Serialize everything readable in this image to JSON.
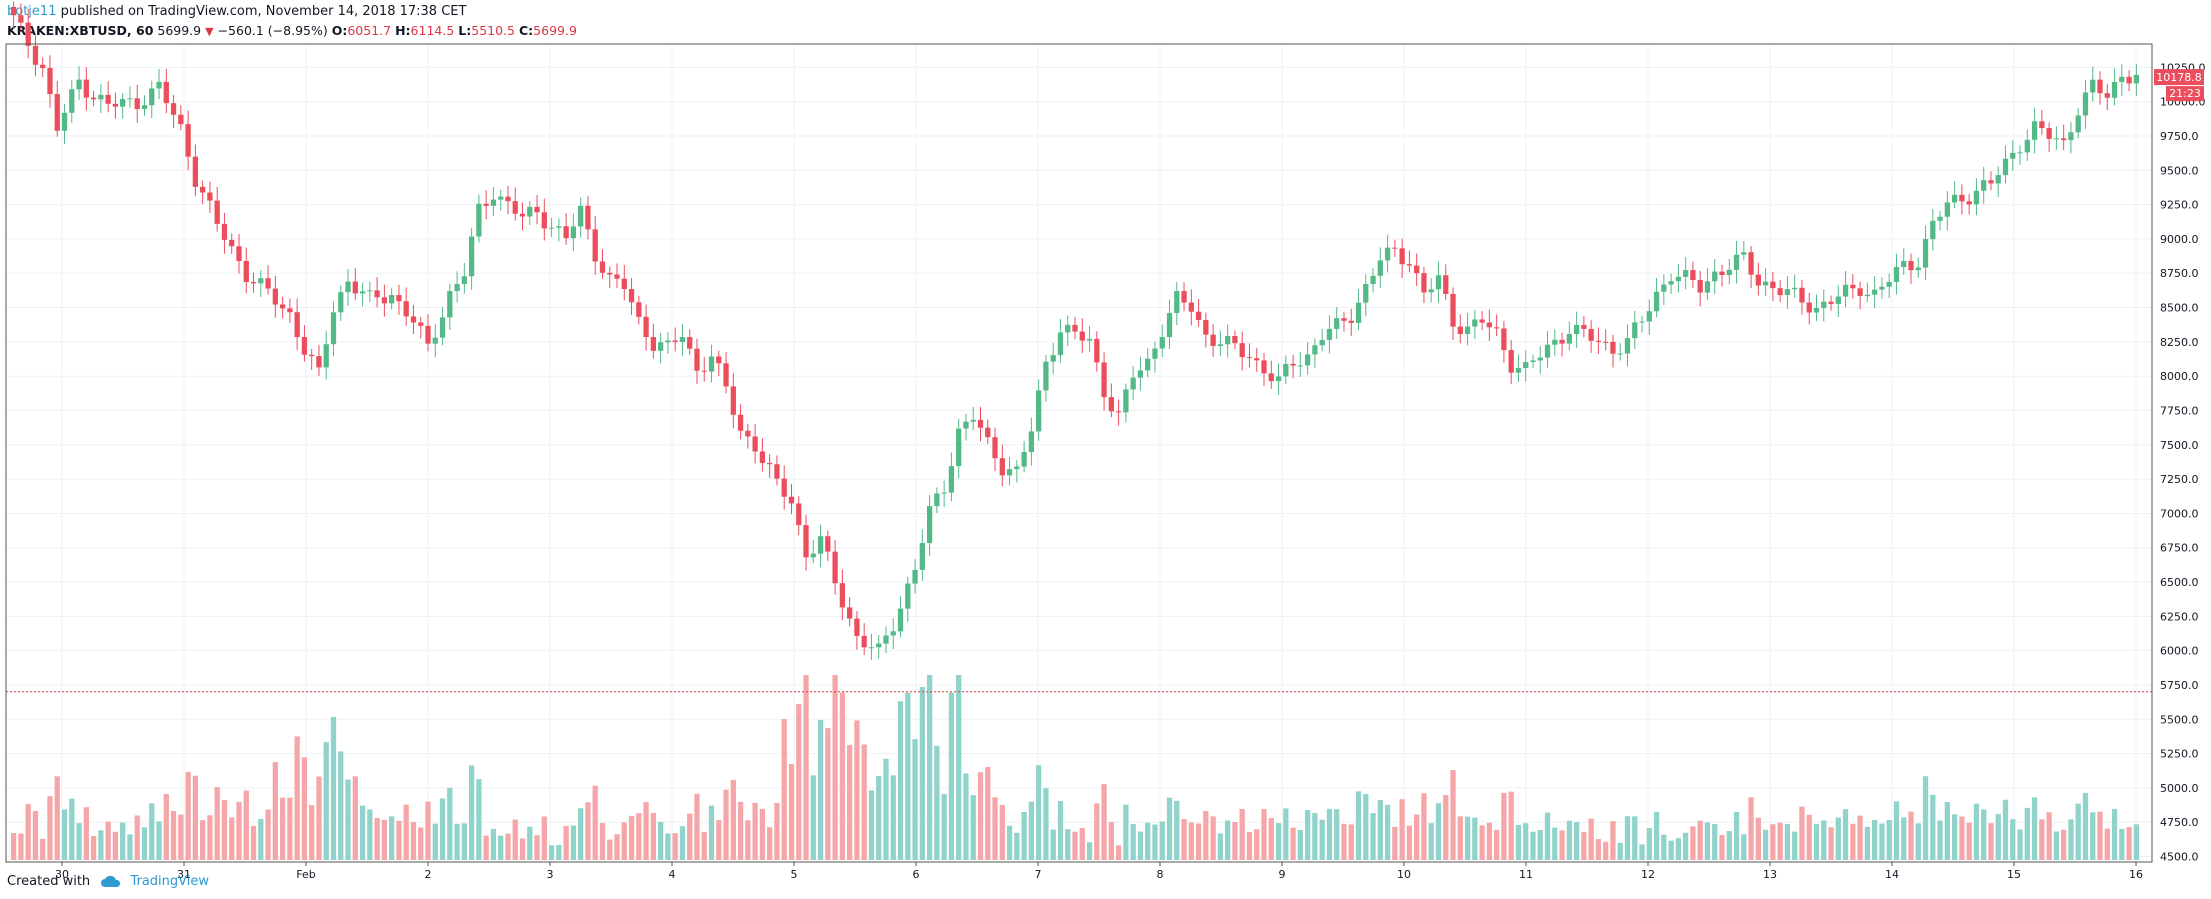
{
  "header": {
    "user": "botje11",
    "published": "published on TradingView.com, November 14, 2018 17:38 CET"
  },
  "ticker": {
    "symbol": "KRAKEN:XBTUSD, 60",
    "last": "5699.9",
    "change": "−560.1 (−8.95%)",
    "o_label": "O:",
    "o": "6051.7",
    "h_label": "H:",
    "h": "6114.5",
    "l_label": "L:",
    "l": "5510.5",
    "c_label": "C:",
    "c": "5699.9"
  },
  "footer": {
    "created_with": "Created with",
    "brand": "TradingView"
  },
  "chart_data": {
    "type": "candlestick",
    "x_ticks": [
      "30",
      "31",
      "Feb",
      "2",
      "3",
      "4",
      "5",
      "6",
      "7",
      "8",
      "9",
      "10",
      "11",
      "12",
      "13",
      "14",
      "15",
      "16"
    ],
    "y_ticks": [
      "4500.0",
      "4750.0",
      "5000.0",
      "5250.0",
      "5500.0",
      "5750.0",
      "6000.0",
      "6250.0",
      "6500.0",
      "6750.0",
      "7000.0",
      "7250.0",
      "7500.0",
      "7750.0",
      "8000.0",
      "8250.0",
      "8500.0",
      "8750.0",
      "9000.0",
      "9250.0",
      "9500.0",
      "9750.0",
      "10000.0",
      "10250.0"
    ],
    "ylim": [
      4460,
      10420
    ],
    "price_label": "10178.8",
    "countdown_label": "21:23",
    "horizontal_line": 5700,
    "up_color": "#53b987",
    "down_color": "#eb4d5c",
    "volume_up_color": "#8fd3ca",
    "volume_down_color": "#f5a6a8",
    "hline_color": "#e03546",
    "grid": true,
    "series_close": [
      [
        0,
        10600
      ],
      [
        4,
        10250
      ],
      [
        6,
        9800
      ],
      [
        9,
        10150
      ],
      [
        11,
        10050
      ],
      [
        13,
        9970
      ],
      [
        17,
        10000
      ],
      [
        20,
        10100
      ],
      [
        23,
        9800
      ],
      [
        25,
        9450
      ],
      [
        28,
        9100
      ],
      [
        32,
        8750
      ],
      [
        35,
        8600
      ],
      [
        38,
        8450
      ],
      [
        40,
        8200
      ],
      [
        42,
        8000
      ],
      [
        44,
        8500
      ],
      [
        46,
        8700
      ],
      [
        49,
        8550
      ],
      [
        52,
        8600
      ],
      [
        55,
        8400
      ],
      [
        57,
        8200
      ],
      [
        60,
        8600
      ],
      [
        62,
        8750
      ],
      [
        64,
        9200
      ],
      [
        66,
        9350
      ],
      [
        68,
        9250
      ],
      [
        70,
        9150
      ],
      [
        72,
        9200
      ],
      [
        74,
        9100
      ],
      [
        76,
        9000
      ],
      [
        78,
        9200
      ],
      [
        80,
        8900
      ],
      [
        82,
        8700
      ],
      [
        84,
        8650
      ],
      [
        86,
        8400
      ],
      [
        88,
        8250
      ],
      [
        90,
        8200
      ],
      [
        92,
        8300
      ],
      [
        94,
        8050
      ],
      [
        96,
        8150
      ],
      [
        98,
        7900
      ],
      [
        100,
        7600
      ],
      [
        102,
        7500
      ],
      [
        105,
        7200
      ],
      [
        107,
        7100
      ],
      [
        109,
        6700
      ],
      [
        111,
        6800
      ],
      [
        113,
        6500
      ],
      [
        116,
        6100
      ],
      [
        119,
        5980
      ],
      [
        121,
        6200
      ],
      [
        124,
        6600
      ],
      [
        126,
        7000
      ],
      [
        128,
        7200
      ],
      [
        130,
        7600
      ],
      [
        132,
        7700
      ],
      [
        134,
        7500
      ],
      [
        136,
        7350
      ],
      [
        138,
        7300
      ],
      [
        140,
        7600
      ],
      [
        142,
        8100
      ],
      [
        144,
        8350
      ],
      [
        146,
        8300
      ],
      [
        148,
        8250
      ],
      [
        150,
        7900
      ],
      [
        152,
        7700
      ],
      [
        154,
        8000
      ],
      [
        156,
        8100
      ],
      [
        158,
        8350
      ],
      [
        160,
        8550
      ],
      [
        162,
        8500
      ],
      [
        164,
        8300
      ],
      [
        166,
        8250
      ],
      [
        168,
        8200
      ],
      [
        170,
        8150
      ],
      [
        172,
        8050
      ],
      [
        174,
        7950
      ],
      [
        176,
        8100
      ],
      [
        178,
        8150
      ],
      [
        180,
        8300
      ],
      [
        182,
        8350
      ],
      [
        184,
        8450
      ],
      [
        186,
        8650
      ],
      [
        188,
        8850
      ],
      [
        190,
        8900
      ],
      [
        192,
        8850
      ],
      [
        194,
        8600
      ],
      [
        196,
        8700
      ],
      [
        198,
        8400
      ],
      [
        200,
        8350
      ],
      [
        202,
        8400
      ],
      [
        204,
        8300
      ],
      [
        206,
        8100
      ],
      [
        208,
        8050
      ],
      [
        210,
        8150
      ],
      [
        212,
        8250
      ],
      [
        214,
        8350
      ],
      [
        216,
        8300
      ],
      [
        218,
        8250
      ],
      [
        220,
        8200
      ],
      [
        222,
        8250
      ],
      [
        224,
        8400
      ],
      [
        226,
        8600
      ],
      [
        228,
        8750
      ],
      [
        230,
        8700
      ],
      [
        232,
        8650
      ],
      [
        234,
        8750
      ],
      [
        236,
        8800
      ],
      [
        238,
        8850
      ],
      [
        240,
        8700
      ],
      [
        242,
        8650
      ],
      [
        244,
        8600
      ],
      [
        246,
        8550
      ],
      [
        248,
        8500
      ],
      [
        250,
        8550
      ],
      [
        252,
        8600
      ],
      [
        254,
        8650
      ],
      [
        256,
        8600
      ],
      [
        258,
        8700
      ],
      [
        260,
        8800
      ],
      [
        262,
        8850
      ],
      [
        264,
        9100
      ],
      [
        266,
        9250
      ],
      [
        268,
        9300
      ],
      [
        270,
        9350
      ],
      [
        272,
        9400
      ],
      [
        274,
        9550
      ],
      [
        276,
        9700
      ],
      [
        278,
        9800
      ],
      [
        280,
        9750
      ],
      [
        282,
        9700
      ],
      [
        284,
        9950
      ],
      [
        286,
        10100
      ],
      [
        288,
        10050
      ],
      [
        290,
        10200
      ],
      [
        292,
        10180
      ]
    ]
  }
}
